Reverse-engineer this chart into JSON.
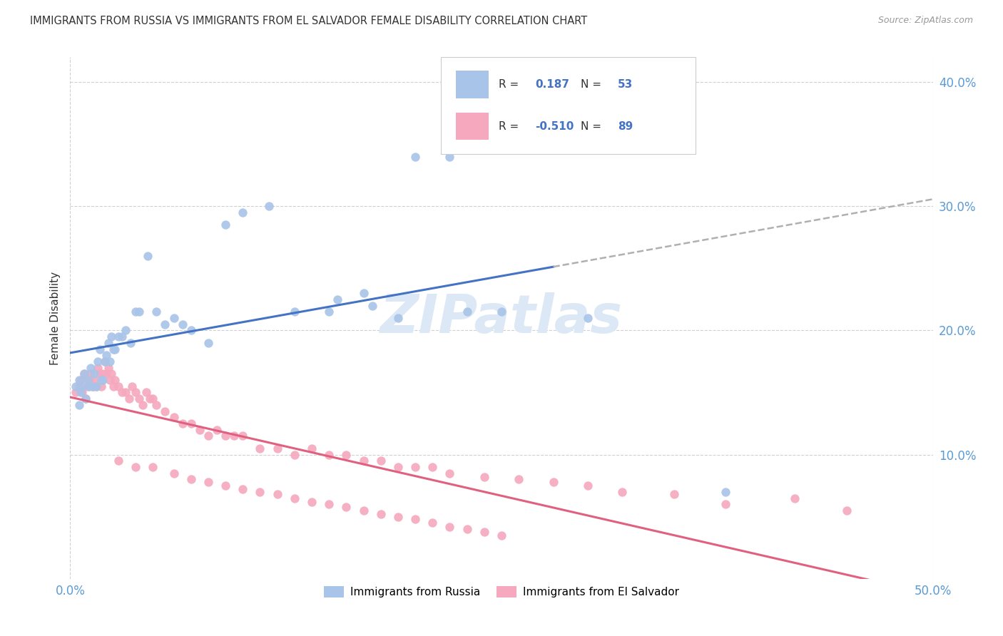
{
  "title": "IMMIGRANTS FROM RUSSIA VS IMMIGRANTS FROM EL SALVADOR FEMALE DISABILITY CORRELATION CHART",
  "source": "Source: ZipAtlas.com",
  "ylabel": "Female Disability",
  "xlim": [
    0.0,
    0.5
  ],
  "ylim": [
    0.0,
    0.42
  ],
  "xticks": [
    0.0,
    0.5
  ],
  "xticklabels": [
    "0.0%",
    "50.0%"
  ],
  "yticks": [
    0.1,
    0.2,
    0.3,
    0.4
  ],
  "yticklabels": [
    "10.0%",
    "20.0%",
    "30.0%",
    "40.0%"
  ],
  "legend_R1": "0.187",
  "legend_N1": "53",
  "legend_R2": "-0.510",
  "legend_N2": "89",
  "label1": "Immigrants from Russia",
  "label2": "Immigrants from El Salvador",
  "color1": "#a8c4e8",
  "color2": "#f5a8be",
  "line_color1": "#4472c4",
  "line_color2": "#e06080",
  "line_color_ext": "#b0b0b0",
  "background_color": "#ffffff",
  "grid_color": "#d0d0d0",
  "title_color": "#333333",
  "axis_tick_color": "#5b9bd5",
  "watermark_color": "#dce8f5",
  "russia_x": [
    0.003,
    0.005,
    0.006,
    0.007,
    0.008,
    0.009,
    0.01,
    0.011,
    0.012,
    0.013,
    0.014,
    0.015,
    0.016,
    0.017,
    0.018,
    0.019,
    0.02,
    0.021,
    0.022,
    0.023,
    0.024,
    0.025,
    0.026,
    0.028,
    0.03,
    0.032,
    0.035,
    0.038,
    0.04,
    0.045,
    0.05,
    0.055,
    0.06,
    0.065,
    0.07,
    0.08,
    0.09,
    0.1,
    0.115,
    0.13,
    0.15,
    0.17,
    0.19,
    0.22,
    0.25,
    0.155,
    0.175,
    0.2,
    0.23,
    0.26,
    0.3,
    0.38,
    0.005
  ],
  "russia_y": [
    0.155,
    0.16,
    0.15,
    0.155,
    0.165,
    0.145,
    0.16,
    0.155,
    0.17,
    0.155,
    0.165,
    0.155,
    0.175,
    0.185,
    0.16,
    0.16,
    0.175,
    0.18,
    0.19,
    0.175,
    0.195,
    0.185,
    0.185,
    0.195,
    0.195,
    0.2,
    0.19,
    0.215,
    0.215,
    0.26,
    0.215,
    0.205,
    0.21,
    0.205,
    0.2,
    0.19,
    0.285,
    0.295,
    0.3,
    0.215,
    0.215,
    0.23,
    0.21,
    0.34,
    0.215,
    0.225,
    0.22,
    0.34,
    0.215,
    0.38,
    0.21,
    0.07,
    0.14
  ],
  "salvador_x": [
    0.003,
    0.005,
    0.006,
    0.007,
    0.008,
    0.009,
    0.01,
    0.011,
    0.012,
    0.013,
    0.014,
    0.015,
    0.016,
    0.017,
    0.018,
    0.019,
    0.02,
    0.021,
    0.022,
    0.023,
    0.024,
    0.025,
    0.026,
    0.028,
    0.03,
    0.032,
    0.034,
    0.036,
    0.038,
    0.04,
    0.042,
    0.044,
    0.046,
    0.048,
    0.05,
    0.055,
    0.06,
    0.065,
    0.07,
    0.075,
    0.08,
    0.085,
    0.09,
    0.095,
    0.1,
    0.11,
    0.12,
    0.13,
    0.14,
    0.15,
    0.16,
    0.17,
    0.18,
    0.19,
    0.2,
    0.21,
    0.22,
    0.24,
    0.26,
    0.28,
    0.3,
    0.32,
    0.35,
    0.38,
    0.42,
    0.45,
    0.028,
    0.038,
    0.048,
    0.06,
    0.07,
    0.08,
    0.09,
    0.1,
    0.11,
    0.12,
    0.13,
    0.14,
    0.15,
    0.16,
    0.17,
    0.18,
    0.19,
    0.2,
    0.21,
    0.22,
    0.23,
    0.24,
    0.25
  ],
  "salvador_y": [
    0.15,
    0.155,
    0.16,
    0.15,
    0.165,
    0.145,
    0.155,
    0.16,
    0.165,
    0.155,
    0.16,
    0.155,
    0.17,
    0.165,
    0.155,
    0.165,
    0.175,
    0.165,
    0.17,
    0.16,
    0.165,
    0.155,
    0.16,
    0.155,
    0.15,
    0.15,
    0.145,
    0.155,
    0.15,
    0.145,
    0.14,
    0.15,
    0.145,
    0.145,
    0.14,
    0.135,
    0.13,
    0.125,
    0.125,
    0.12,
    0.115,
    0.12,
    0.115,
    0.115,
    0.115,
    0.105,
    0.105,
    0.1,
    0.105,
    0.1,
    0.1,
    0.095,
    0.095,
    0.09,
    0.09,
    0.09,
    0.085,
    0.082,
    0.08,
    0.078,
    0.075,
    0.07,
    0.068,
    0.06,
    0.065,
    0.055,
    0.095,
    0.09,
    0.09,
    0.085,
    0.08,
    0.078,
    0.075,
    0.072,
    0.07,
    0.068,
    0.065,
    0.062,
    0.06,
    0.058,
    0.055,
    0.052,
    0.05,
    0.048,
    0.045,
    0.042,
    0.04,
    0.038,
    0.035
  ]
}
